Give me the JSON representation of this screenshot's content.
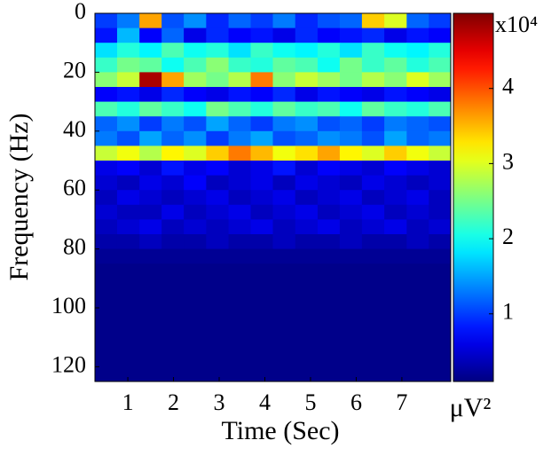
{
  "chart_data": {
    "type": "heatmap",
    "xlabel": "Time (Sec)",
    "ylabel": "Frequency (Hz)",
    "colorbar_label": "μV²",
    "colorbar_multiplier": "x10⁴",
    "colormap": "jet",
    "x": [
      0.52,
      1.01,
      1.5,
      1.98,
      2.47,
      2.96,
      3.45,
      3.93,
      4.42,
      4.91,
      5.4,
      5.88,
      6.37,
      6.86,
      7.35,
      7.83
    ],
    "y": [
      2.5,
      7.5,
      12.5,
      17.5,
      22.5,
      27.5,
      32.5,
      37.5,
      42.5,
      47.5,
      52.5,
      57.5,
      62.5,
      67.5,
      72.5,
      77.5,
      82.5,
      87.5,
      92.5,
      97.5,
      102.5,
      107.5,
      112.5,
      117.5,
      122.5
    ],
    "z": [
      [
        1.0,
        1.3,
        3.6,
        1.1,
        1.4,
        0.9,
        1.2,
        1.0,
        1.3,
        0.9,
        1.1,
        1.2,
        3.4,
        3.0,
        1.2,
        1.0
      ],
      [
        0.8,
        1.6,
        0.7,
        1.2,
        0.6,
        0.9,
        0.7,
        0.8,
        0.6,
        0.9,
        0.7,
        0.8,
        0.9,
        0.6,
        0.8,
        0.7
      ],
      [
        1.8,
        2.1,
        1.9,
        2.3,
        2.0,
        2.1,
        1.8,
        2.2,
        2.0,
        1.9,
        2.1,
        1.8,
        2.2,
        2.0,
        1.9,
        2.1
      ],
      [
        2.2,
        2.5,
        2.4,
        2.0,
        2.3,
        2.6,
        2.2,
        2.1,
        2.4,
        2.3,
        2.0,
        2.5,
        2.2,
        2.4,
        2.1,
        2.3
      ],
      [
        2.6,
        2.9,
        4.8,
        3.6,
        2.7,
        2.5,
        2.8,
        3.8,
        2.6,
        2.9,
        2.7,
        2.5,
        2.8,
        2.6,
        3.0,
        2.7
      ],
      [
        0.7,
        0.8,
        0.6,
        0.9,
        0.7,
        0.6,
        0.8,
        0.7,
        0.9,
        0.6,
        0.8,
        0.7,
        0.6,
        0.8,
        0.7,
        0.6
      ],
      [
        2.3,
        2.1,
        2.4,
        2.2,
        2.0,
        2.5,
        2.3,
        2.1,
        2.4,
        2.2,
        2.3,
        2.0,
        2.4,
        2.2,
        2.1,
        2.3
      ],
      [
        1.2,
        1.4,
        1.0,
        1.3,
        1.1,
        1.5,
        1.2,
        1.0,
        1.3,
        1.4,
        1.1,
        1.2,
        1.0,
        1.3,
        1.2,
        1.1
      ],
      [
        1.3,
        1.1,
        1.5,
        1.2,
        1.4,
        1.0,
        1.3,
        1.5,
        1.1,
        1.2,
        1.4,
        1.3,
        1.1,
        1.5,
        1.2,
        1.3
      ],
      [
        2.9,
        3.1,
        2.8,
        3.2,
        3.0,
        3.4,
        3.8,
        3.5,
        3.1,
        3.3,
        3.6,
        3.2,
        3.0,
        3.4,
        3.1,
        2.9
      ],
      [
        0.6,
        0.7,
        0.5,
        0.8,
        0.6,
        0.7,
        0.5,
        0.6,
        0.8,
        0.5,
        0.7,
        0.6,
        0.5,
        0.7,
        0.6,
        0.5
      ],
      [
        0.5,
        0.4,
        0.6,
        0.5,
        0.7,
        0.4,
        0.5,
        0.6,
        0.4,
        0.6,
        0.5,
        0.4,
        0.6,
        0.5,
        0.4,
        0.5
      ],
      [
        0.4,
        0.6,
        0.5,
        0.4,
        0.5,
        0.6,
        0.4,
        0.5,
        0.6,
        0.4,
        0.5,
        0.6,
        0.4,
        0.5,
        0.6,
        0.4
      ],
      [
        0.5,
        0.4,
        0.4,
        0.6,
        0.4,
        0.5,
        0.6,
        0.4,
        0.5,
        0.6,
        0.4,
        0.5,
        0.6,
        0.4,
        0.5,
        0.4
      ],
      [
        0.4,
        0.5,
        0.6,
        0.4,
        0.5,
        0.4,
        0.5,
        0.6,
        0.4,
        0.5,
        0.6,
        0.4,
        0.5,
        0.6,
        0.4,
        0.5
      ],
      [
        0.3,
        0.3,
        0.4,
        0.3,
        0.3,
        0.4,
        0.3,
        0.3,
        0.4,
        0.3,
        0.3,
        0.4,
        0.3,
        0.3,
        0.4,
        0.3
      ],
      [
        0.2,
        0.2,
        0.2,
        0.2,
        0.2,
        0.2,
        0.2,
        0.2,
        0.2,
        0.2,
        0.2,
        0.2,
        0.2,
        0.2,
        0.2,
        0.2
      ],
      [
        0.15,
        0.15,
        0.15,
        0.15,
        0.15,
        0.15,
        0.15,
        0.15,
        0.15,
        0.15,
        0.15,
        0.15,
        0.15,
        0.15,
        0.15,
        0.15
      ],
      [
        0.15,
        0.15,
        0.15,
        0.15,
        0.15,
        0.15,
        0.15,
        0.15,
        0.15,
        0.15,
        0.15,
        0.15,
        0.15,
        0.15,
        0.15,
        0.15
      ],
      [
        0.15,
        0.15,
        0.15,
        0.15,
        0.15,
        0.15,
        0.15,
        0.15,
        0.15,
        0.15,
        0.15,
        0.15,
        0.15,
        0.15,
        0.15,
        0.15
      ],
      [
        0.15,
        0.15,
        0.15,
        0.15,
        0.15,
        0.15,
        0.15,
        0.15,
        0.15,
        0.15,
        0.15,
        0.15,
        0.15,
        0.15,
        0.15,
        0.15
      ],
      [
        0.15,
        0.15,
        0.15,
        0.15,
        0.15,
        0.15,
        0.15,
        0.15,
        0.15,
        0.15,
        0.15,
        0.15,
        0.15,
        0.15,
        0.15,
        0.15
      ],
      [
        0.15,
        0.15,
        0.15,
        0.15,
        0.15,
        0.15,
        0.15,
        0.15,
        0.15,
        0.15,
        0.15,
        0.15,
        0.15,
        0.15,
        0.15,
        0.15
      ],
      [
        0.15,
        0.15,
        0.15,
        0.15,
        0.15,
        0.15,
        0.15,
        0.15,
        0.15,
        0.15,
        0.15,
        0.15,
        0.15,
        0.15,
        0.15,
        0.15
      ],
      [
        0.15,
        0.15,
        0.15,
        0.15,
        0.15,
        0.15,
        0.15,
        0.15,
        0.15,
        0.15,
        0.15,
        0.15,
        0.15,
        0.15,
        0.15,
        0.15
      ]
    ],
    "xlim": [
      0.28,
      8.07
    ],
    "xticks": [
      1,
      2,
      3,
      4,
      5,
      6,
      7
    ],
    "ylim": [
      0,
      125
    ],
    "yticks": [
      0,
      20,
      40,
      60,
      80,
      100,
      120
    ],
    "y_inverted": true,
    "clim": [
      0.1,
      5
    ],
    "cticks": [
      1,
      2,
      3,
      4
    ]
  }
}
